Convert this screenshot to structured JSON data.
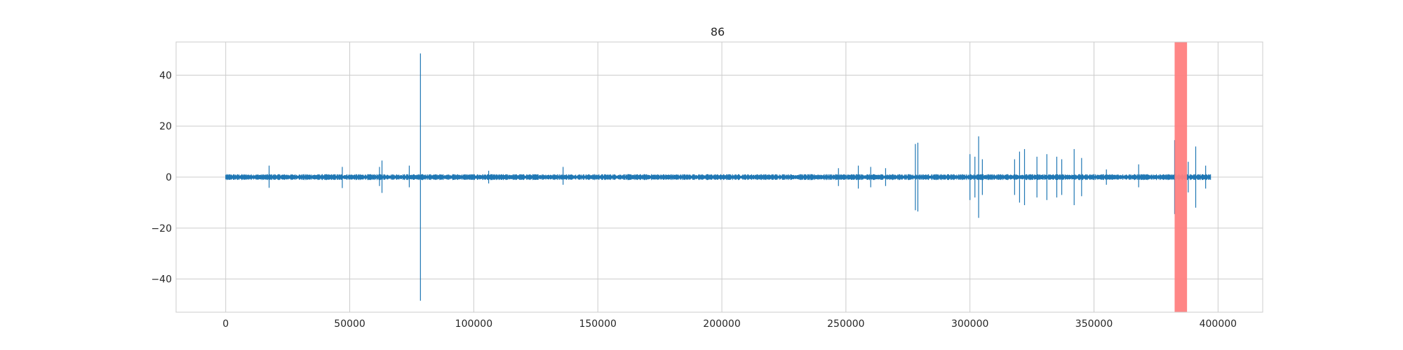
{
  "chart_data": {
    "type": "line",
    "title": "86",
    "xlabel": "",
    "ylabel": "",
    "xlim": [
      -20000,
      418000
    ],
    "ylim": [
      -53,
      53
    ],
    "grid": true,
    "x_ticks": [
      0,
      50000,
      100000,
      150000,
      200000,
      250000,
      300000,
      350000,
      400000
    ],
    "x_tick_labels": [
      "0",
      "50000",
      "100000",
      "150000",
      "200000",
      "250000",
      "300000",
      "350000",
      "400000"
    ],
    "y_ticks": [
      40,
      20,
      0,
      -20,
      -40
    ],
    "y_tick_labels": [
      "40",
      "20",
      "0",
      "−20",
      "−40"
    ],
    "x_range": [
      0,
      397000
    ],
    "baseline_amplitude": 0.9,
    "spikes": [
      {
        "x": 17500,
        "ymax": 4.5,
        "ymin": -4.2
      },
      {
        "x": 47000,
        "ymax": 4.0,
        "ymin": -4.3
      },
      {
        "x": 62000,
        "ymax": 4.0,
        "ymin": -3.5
      },
      {
        "x": 63000,
        "ymax": 6.5,
        "ymin": -6.2
      },
      {
        "x": 74000,
        "ymax": 4.5,
        "ymin": -4.0
      },
      {
        "x": 78500,
        "ymax": 48.5,
        "ymin": -48.5
      },
      {
        "x": 106000,
        "ymax": 2.5,
        "ymin": -2.5
      },
      {
        "x": 136000,
        "ymax": 4.0,
        "ymin": -3.0
      },
      {
        "x": 247000,
        "ymax": 3.5,
        "ymin": -3.5
      },
      {
        "x": 255000,
        "ymax": 4.5,
        "ymin": -4.5
      },
      {
        "x": 260000,
        "ymax": 4.0,
        "ymin": -4.0
      },
      {
        "x": 266000,
        "ymax": 3.5,
        "ymin": -3.5
      },
      {
        "x": 278000,
        "ymax": 13.0,
        "ymin": -13.0
      },
      {
        "x": 279000,
        "ymax": 13.5,
        "ymin": -13.5
      },
      {
        "x": 300000,
        "ymax": 9.0,
        "ymin": -9.0
      },
      {
        "x": 302000,
        "ymax": 8.0,
        "ymin": -8.0
      },
      {
        "x": 303500,
        "ymax": 16.0,
        "ymin": -16.0
      },
      {
        "x": 305000,
        "ymax": 7.0,
        "ymin": -7.0
      },
      {
        "x": 318000,
        "ymax": 7.0,
        "ymin": -7.0
      },
      {
        "x": 320000,
        "ymax": 10.0,
        "ymin": -10.0
      },
      {
        "x": 322000,
        "ymax": 11.0,
        "ymin": -11.0
      },
      {
        "x": 327000,
        "ymax": 8.0,
        "ymin": -8.0
      },
      {
        "x": 331000,
        "ymax": 9.0,
        "ymin": -9.0
      },
      {
        "x": 335000,
        "ymax": 8.0,
        "ymin": -8.0
      },
      {
        "x": 337000,
        "ymax": 7.0,
        "ymin": -7.0
      },
      {
        "x": 342000,
        "ymax": 11.0,
        "ymin": -11.0
      },
      {
        "x": 345000,
        "ymax": 7.5,
        "ymin": -7.5
      },
      {
        "x": 355000,
        "ymax": 3.0,
        "ymin": -3.0
      },
      {
        "x": 368000,
        "ymax": 5.0,
        "ymin": -4.0
      },
      {
        "x": 382500,
        "ymax": 14.5,
        "ymin": -14.5
      },
      {
        "x": 388000,
        "ymax": 6.0,
        "ymin": -6.0
      },
      {
        "x": 391000,
        "ymax": 12.0,
        "ymin": -12.0
      },
      {
        "x": 395000,
        "ymax": 4.5,
        "ymin": -4.5
      }
    ],
    "highlight_band": {
      "x_start": 382500,
      "x_end": 387500
    },
    "colors": {
      "line": "#1f77b4",
      "highlight": "#ff7f7f",
      "grid": "#cccccc",
      "axes": "#cccccc",
      "text": "#262626"
    }
  }
}
